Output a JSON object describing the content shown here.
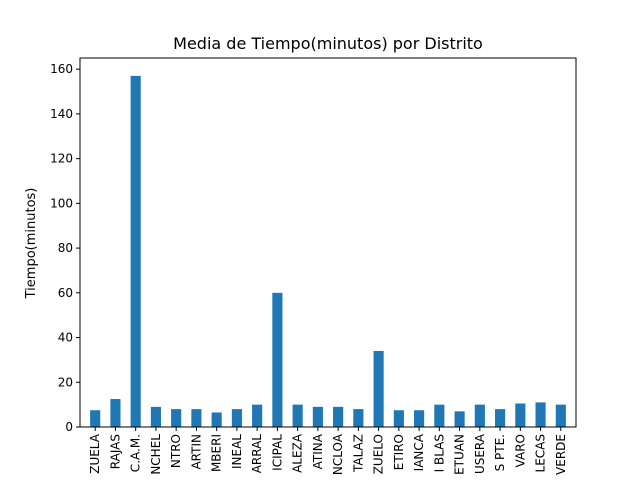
{
  "chart_data": {
    "type": "bar",
    "title": "Media de Tiempo(minutos) por Distrito",
    "xlabel": "",
    "ylabel": "Tiempo(minutos)",
    "ylim": [
      0,
      165
    ],
    "yticks": [
      0,
      20,
      40,
      60,
      80,
      100,
      120,
      140,
      160
    ],
    "grid": false,
    "legend": false,
    "bar_color": "#1f77b4",
    "categories": [
      "ZUELA",
      "RAJAS",
      "C.A.M.",
      "NCHEL",
      "NTRO",
      "ARTIN",
      "MBERI",
      "INEAL",
      "ARRAL",
      "ICIPAL",
      "ALEZA",
      "ATINA",
      "NCLOA",
      "TALAZ",
      "ZUELO",
      "ETIRO",
      "IANCA",
      "I BLAS",
      "ETUAN",
      "USERA",
      "S PTE.",
      "VARO",
      "LECAS",
      "VERDE"
    ],
    "values": [
      7.5,
      12.5,
      157,
      9,
      8,
      8,
      6.5,
      8,
      10,
      60,
      10,
      9,
      9,
      8,
      34,
      7.5,
      7.5,
      10,
      7,
      10,
      8,
      10.5,
      11,
      10
    ]
  }
}
